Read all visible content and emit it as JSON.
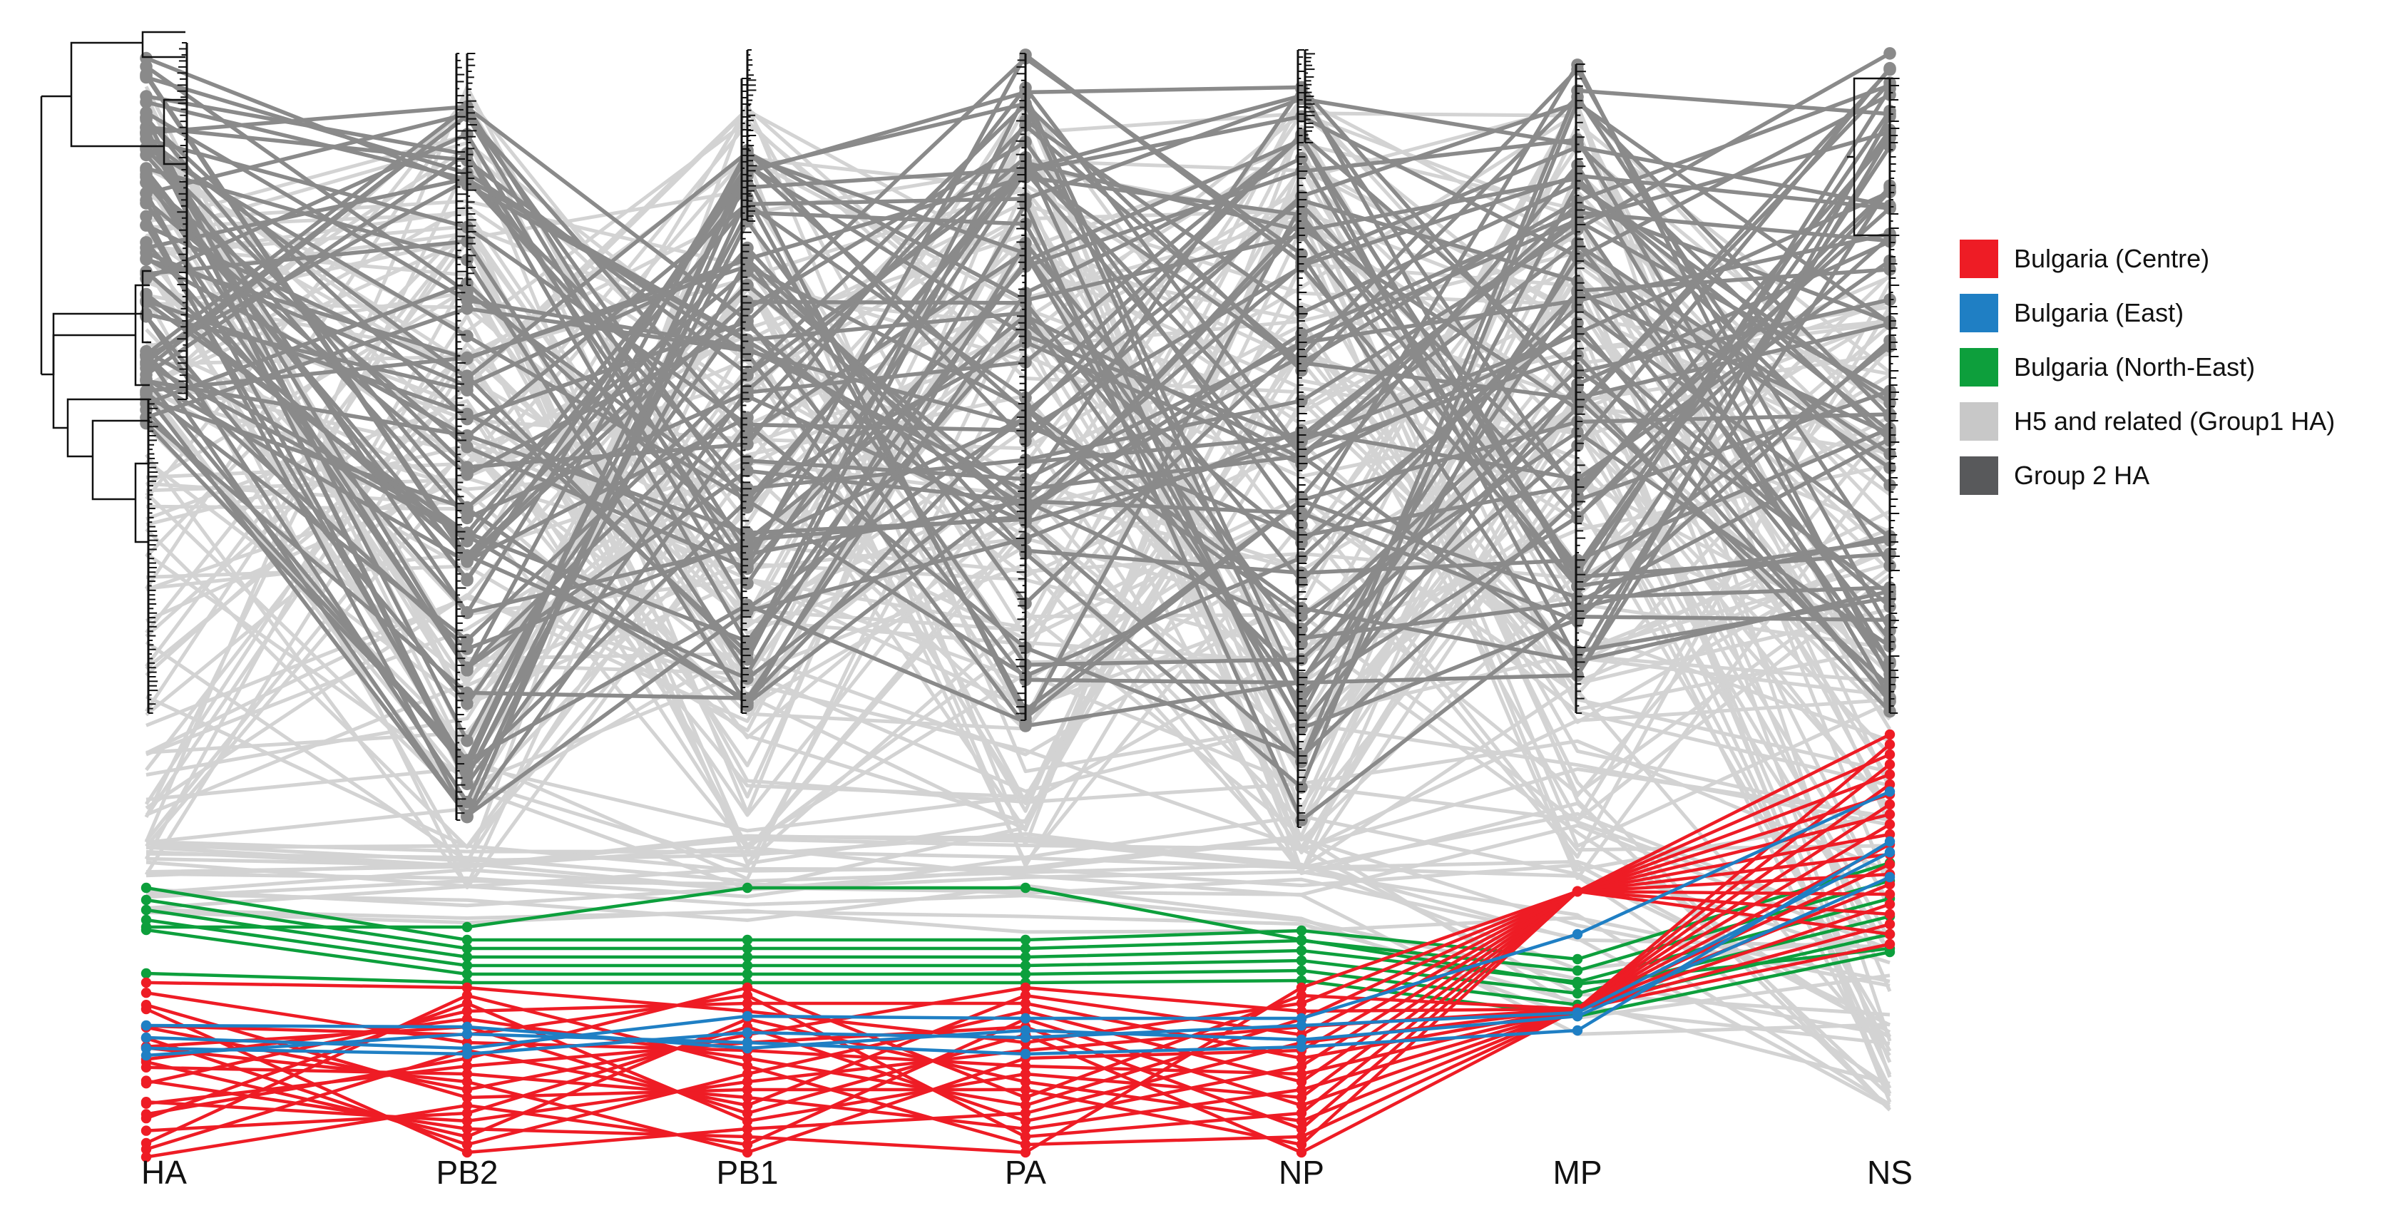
{
  "segments": [
    "HA",
    "PB2",
    "PB1",
    "PA",
    "NP",
    "MP",
    "NS"
  ],
  "legend": [
    {
      "key": "centre",
      "label": "Bulgaria (Centre)",
      "color": "#ee1c25"
    },
    {
      "key": "east",
      "label": "Bulgaria (East)",
      "color": "#1f7fc4"
    },
    {
      "key": "northeast",
      "label": "Bulgaria (North-East)",
      "color": "#0d9f3c"
    },
    {
      "key": "group1",
      "label": "H5 and related (Group1 HA)",
      "color": "#c8c8c8"
    },
    {
      "key": "group2",
      "label": "Group 2 HA",
      "color": "#58595b"
    }
  ],
  "colors": {
    "group1_line": "#d3d3d3",
    "group2_line": "#8a8a8a",
    "tree": "#111111"
  }
}
